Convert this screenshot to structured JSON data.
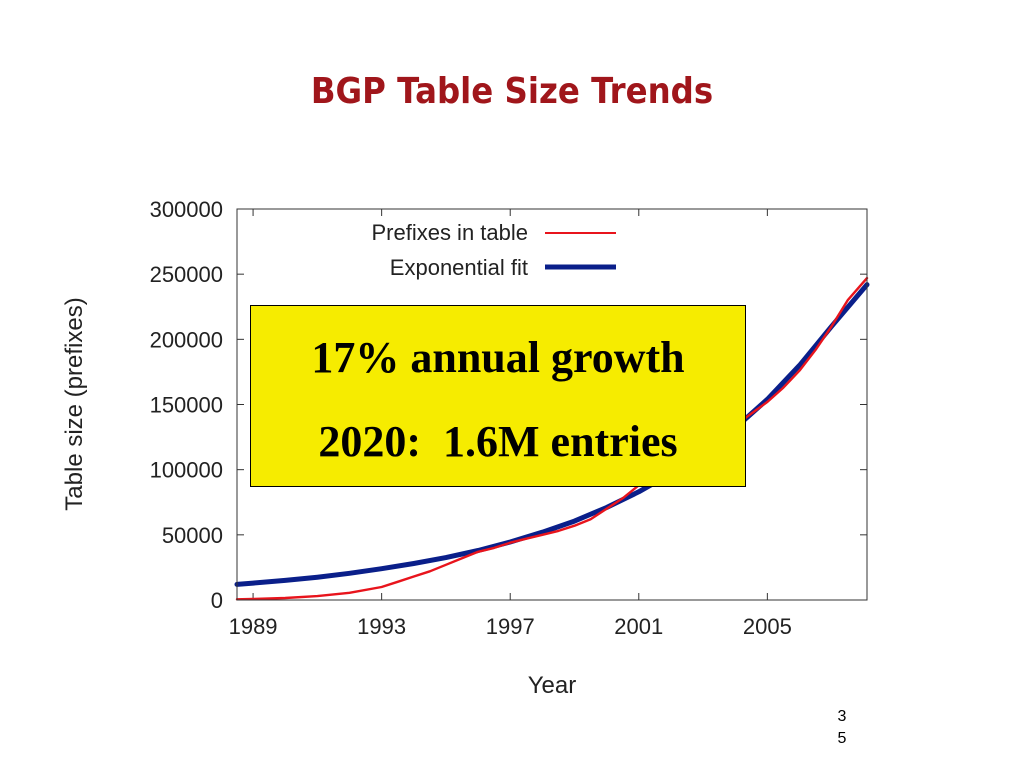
{
  "slide": {
    "title": "BGP Table Size Trends",
    "callout": {
      "line1": "17% annual growth",
      "line2": "2020:  1.6M entries",
      "background": "#f6ec00"
    },
    "page_number_digits": [
      "3",
      "5"
    ]
  },
  "chart_data": {
    "type": "line",
    "xlabel": "Year",
    "ylabel": "Table size (prefixes)",
    "xlim": [
      1988.5,
      2008.1
    ],
    "ylim": [
      0,
      300000
    ],
    "x_ticks": [
      1989,
      1993,
      1997,
      2001,
      2005
    ],
    "y_ticks": [
      0,
      50000,
      100000,
      150000,
      200000,
      250000,
      300000
    ],
    "x_tick_labels": [
      "1989",
      "1993",
      "1997",
      "2001",
      "2005"
    ],
    "y_tick_labels": [
      "0",
      "50000",
      "100000",
      "150000",
      "200000",
      "250000",
      "300000"
    ],
    "grid": false,
    "legend_position": "top-right",
    "series": [
      {
        "name": "Prefixes in table",
        "color": "#e8141c",
        "style": "thin",
        "x": [
          1988.5,
          1989,
          1990,
          1991,
          1992,
          1993,
          1993.5,
          1994,
          1994.5,
          1995,
          1995.5,
          1996,
          1996.5,
          1997,
          1997.5,
          1998,
          1998.5,
          1999,
          1999.5,
          2000,
          2000.5,
          2001,
          2001.5,
          2002,
          2002.5,
          2003,
          2003.5,
          2004,
          2004.5,
          2005,
          2005.5,
          2006,
          2006.5,
          2007,
          2007.5,
          2008.1
        ],
        "y": [
          500,
          800,
          1500,
          3000,
          5500,
          10000,
          14000,
          18000,
          22000,
          27000,
          32000,
          37000,
          40000,
          44000,
          47000,
          50000,
          53000,
          57000,
          62000,
          70000,
          78000,
          88000,
          100000,
          108000,
          113000,
          118000,
          125000,
          134000,
          143000,
          152000,
          163000,
          176000,
          192000,
          210000,
          230000,
          247000
        ]
      },
      {
        "name": "Exponential fit",
        "color": "#0a1f8a",
        "style": "thick",
        "x": [
          1988.5,
          1989,
          1990,
          1991,
          1992,
          1993,
          1994,
          1995,
          1996,
          1997,
          1998,
          1999,
          2000,
          2001,
          2002,
          2003,
          2004,
          2005,
          2006,
          2007,
          2008.1
        ],
        "y": [
          12000,
          13000,
          15000,
          17500,
          20500,
          24000,
          28000,
          32500,
          38000,
          44500,
          52000,
          60500,
          71000,
          83000,
          97000,
          113000,
          132000,
          154000,
          180000,
          210000,
          242000
        ]
      }
    ]
  }
}
